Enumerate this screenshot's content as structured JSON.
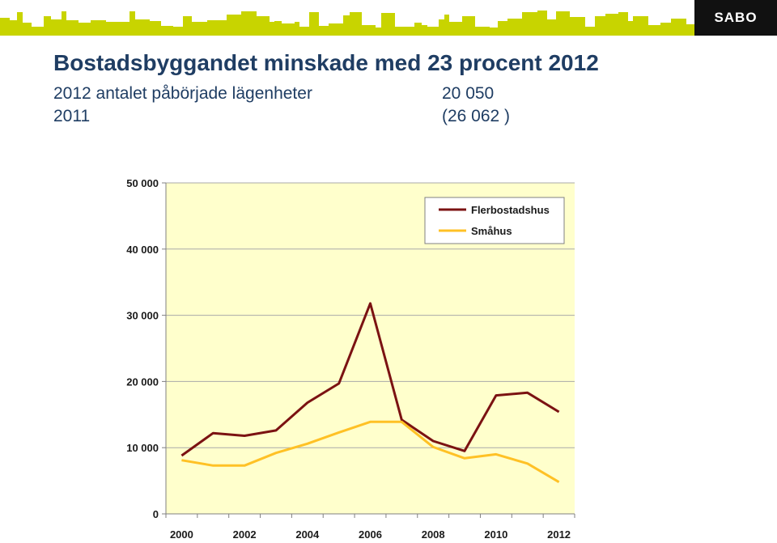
{
  "header": {
    "logo": "SABO",
    "banner_color": "#c8d400"
  },
  "slide": {
    "title": "Bostadsbyggandet minskade med 23 procent 2012",
    "stats": [
      {
        "label": "2012 antalet påbörjade lägenheter",
        "value": "20 050"
      },
      {
        "label": "2011",
        "value": "(26 062 )"
      }
    ]
  },
  "chart_data": {
    "type": "line",
    "title": "",
    "xlabel": "",
    "ylabel": "",
    "x": [
      2000,
      2001,
      2002,
      2003,
      2004,
      2005,
      2006,
      2007,
      2008,
      2009,
      2010,
      2011,
      2012
    ],
    "x_tick_labels": [
      "2000",
      "2002",
      "2004",
      "2006",
      "2008",
      "2010",
      "2012"
    ],
    "y_tick_labels": [
      "0",
      "10 000",
      "20 000",
      "30 000",
      "40 000",
      "50 000"
    ],
    "ylim": [
      0,
      50000
    ],
    "grid": "horizontal",
    "plot_background": "#ffffcc",
    "legend_position": "top-right",
    "series": [
      {
        "name": "Flerbostadshus",
        "color": "#7b1212",
        "values": [
          8800,
          12200,
          11800,
          12600,
          16800,
          19700,
          31800,
          14200,
          11000,
          9500,
          17900,
          18300,
          15400
        ]
      },
      {
        "name": "Småhus",
        "color": "#ffc125",
        "values": [
          8100,
          7300,
          7300,
          9200,
          10600,
          12300,
          13900,
          13900,
          10100,
          8400,
          9000,
          7600,
          4800
        ]
      }
    ]
  }
}
